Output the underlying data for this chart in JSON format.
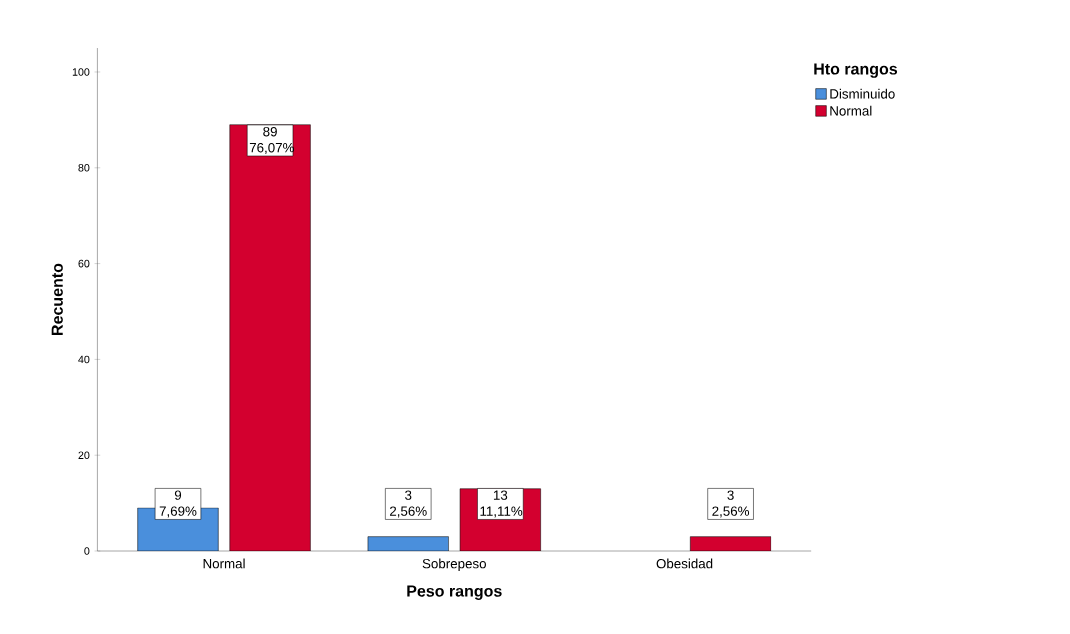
{
  "chart_data": {
    "type": "bar",
    "xlabel": "Peso rangos",
    "ylabel": "Recuento",
    "legend_title": "Hto rangos",
    "legend": "top right",
    "categories": [
      "Normal",
      "Sobrepeso",
      "Obesidad"
    ],
    "series": [
      {
        "name": "Disminuido",
        "color": "#4a8fdc",
        "values": [
          9,
          3,
          null
        ],
        "value_labels": [
          "9 7,69%",
          "3 2,56%",
          null
        ]
      },
      {
        "name": "Normal",
        "color": "#d3002f",
        "values": [
          89,
          13,
          3
        ],
        "value_labels": [
          "89 76,07%",
          "13 11,11%",
          "3 2,56%"
        ]
      }
    ],
    "ylim": [
      0,
      105
    ],
    "yticks": [
      0,
      20,
      40,
      60,
      80,
      100
    ],
    "grid": false
  }
}
